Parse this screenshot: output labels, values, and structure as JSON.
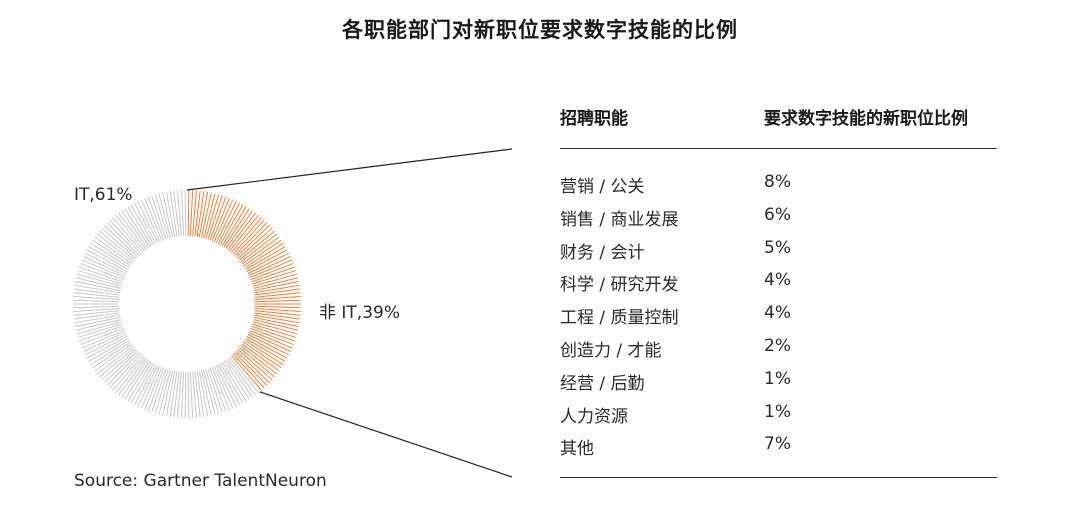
{
  "title": "各职能部门对新职位要求数字技能的比例",
  "source": "Source: Gartner TalentNeuron",
  "colors": {
    "it": "#c8c8c8",
    "non_it": "#f07f3a",
    "line": "#222222"
  },
  "chart_data": [
    {
      "type": "pie",
      "style": "donut",
      "slices": [
        {
          "label": "IT,61%",
          "value": 61
        },
        {
          "label": "非 IT,39%",
          "value": 39
        }
      ]
    },
    {
      "type": "table",
      "columns": [
        "招聘职能",
        "要求数字技能的新职位比例"
      ],
      "rows": [
        [
          "营销 / 公关",
          "8%"
        ],
        [
          "销售 / 商业发展",
          "6%"
        ],
        [
          "财务 / 会计",
          "5%"
        ],
        [
          "科学 / 研究开发",
          "4%"
        ],
        [
          "工程 / 质量控制",
          "4%"
        ],
        [
          "创造力 / 才能",
          "2%"
        ],
        [
          "经营 / 后勤",
          "1%"
        ],
        [
          "人力资源",
          "1%"
        ],
        [
          "其他",
          "7%"
        ]
      ]
    }
  ]
}
